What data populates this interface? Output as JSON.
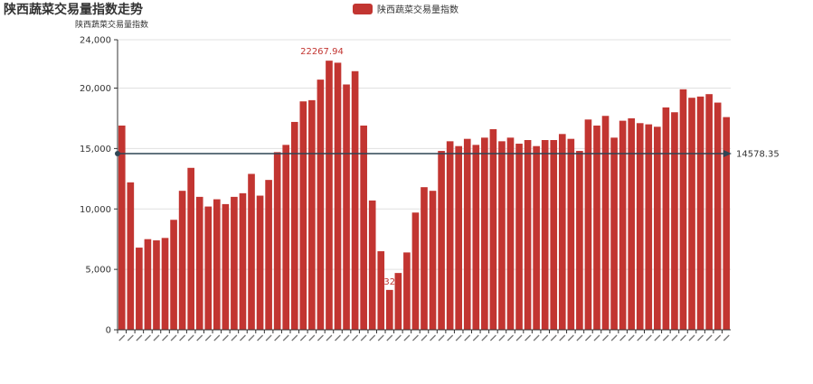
{
  "title": "陕西蔬菜交易量指数走势",
  "chart_data": {
    "type": "bar",
    "title": "陕西蔬菜交易量指数走势",
    "ylabel": "陕西蔬菜交易量指数",
    "xlabel": "",
    "legend": {
      "entries": [
        "陕西蔬菜交易量指数"
      ],
      "placement": "top-center"
    },
    "ylim": [
      0,
      24000
    ],
    "yticks": [
      0,
      5000,
      10000,
      15000,
      20000,
      24000
    ],
    "ytick_labels": [
      "0",
      "5,000",
      "10,000",
      "15,000",
      "20,000",
      "24,000"
    ],
    "grid": true,
    "bar_color": "#c23531",
    "series": [
      {
        "name": "陕西蔬菜交易量指数",
        "values": [
          16900,
          12200,
          6800,
          7500,
          7400,
          7600,
          9100,
          11500,
          13400,
          11000,
          10200,
          10800,
          10400,
          11000,
          11300,
          12900,
          11100,
          12400,
          14700,
          15300,
          17200,
          18900,
          19000,
          20700,
          22267.94,
          22100,
          20300,
          21400,
          16900,
          10700,
          6500,
          3300,
          4700,
          6400,
          9700,
          11800,
          11500,
          14800,
          15600,
          15200,
          15800,
          15300,
          15900,
          16600,
          15600,
          15900,
          15400,
          15700,
          15200,
          15700,
          15700,
          16200,
          15800,
          14800,
          17400,
          16900,
          17700,
          15900,
          17300,
          17500,
          17100,
          17000,
          16800,
          18400,
          18000,
          19900,
          19200,
          19300,
          19500,
          18800,
          17600
        ]
      }
    ],
    "annotations": {
      "max": {
        "label": "22267.94",
        "index": 24
      },
      "min": {
        "label": "3329",
        "index": 31
      },
      "average_line": {
        "label": "14578.35",
        "value": 14578.35
      }
    },
    "xtick_labels_illegible": true
  }
}
